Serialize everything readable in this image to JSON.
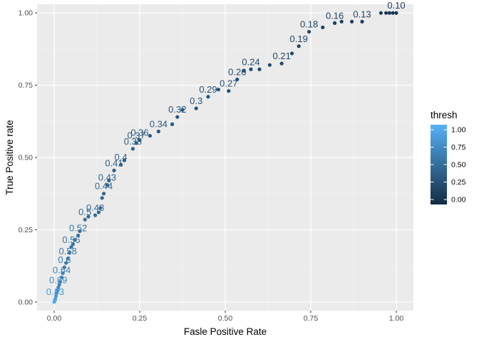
{
  "chart_data": {
    "type": "scatter",
    "title": "",
    "xlabel": "Fasle Positive Rate",
    "ylabel": "True Positive rate",
    "xlim": [
      -0.05,
      1.05
    ],
    "ylim": [
      -0.03,
      1.03
    ],
    "x_ticks": [
      {
        "value": 0.0,
        "label": "0.00"
      },
      {
        "value": 0.25,
        "label": "0.25"
      },
      {
        "value": 0.5,
        "label": "0.50"
      },
      {
        "value": 0.75,
        "label": "0.75"
      },
      {
        "value": 1.0,
        "label": "1.00"
      }
    ],
    "y_ticks": [
      {
        "value": 0.0,
        "label": "0.00"
      },
      {
        "value": 0.25,
        "label": "0.25"
      },
      {
        "value": 0.5,
        "label": "0.50"
      },
      {
        "value": 0.75,
        "label": "0.75"
      },
      {
        "value": 1.0,
        "label": "1.00"
      }
    ],
    "grid": true,
    "legend": {
      "title": "thresh",
      "position": "right",
      "low_color": "#132B43",
      "high_color": "#56B1F7",
      "ticks": [
        {
          "value": 0.0,
          "label": "0.00"
        },
        {
          "value": 0.25,
          "label": "0.25"
        },
        {
          "value": 0.5,
          "label": "0.50"
        },
        {
          "value": 0.75,
          "label": "0.75"
        },
        {
          "value": 1.0,
          "label": "1.00"
        }
      ]
    },
    "points": [
      {
        "x": 1.0,
        "y": 1.0,
        "thresh": 0.1,
        "label": "0.10"
      },
      {
        "x": 0.99,
        "y": 1.0,
        "thresh": 0.1
      },
      {
        "x": 0.98,
        "y": 1.0,
        "thresh": 0.11
      },
      {
        "x": 0.97,
        "y": 1.0,
        "thresh": 0.11
      },
      {
        "x": 0.955,
        "y": 1.0,
        "thresh": 0.12
      },
      {
        "x": 0.9,
        "y": 0.97,
        "thresh": 0.13,
        "label": "0.13"
      },
      {
        "x": 0.87,
        "y": 0.97,
        "thresh": 0.14
      },
      {
        "x": 0.84,
        "y": 0.97,
        "thresh": 0.15
      },
      {
        "x": 0.82,
        "y": 0.965,
        "thresh": 0.16,
        "label": "0.16"
      },
      {
        "x": 0.785,
        "y": 0.95,
        "thresh": 0.17
      },
      {
        "x": 0.745,
        "y": 0.935,
        "thresh": 0.18,
        "label": "0.18"
      },
      {
        "x": 0.715,
        "y": 0.885,
        "thresh": 0.19,
        "label": "0.19"
      },
      {
        "x": 0.695,
        "y": 0.86,
        "thresh": 0.2
      },
      {
        "x": 0.665,
        "y": 0.825,
        "thresh": 0.21,
        "label": "0.21"
      },
      {
        "x": 0.63,
        "y": 0.82,
        "thresh": 0.22
      },
      {
        "x": 0.6,
        "y": 0.805,
        "thresh": 0.23
      },
      {
        "x": 0.575,
        "y": 0.805,
        "thresh": 0.24,
        "label": "0.24"
      },
      {
        "x": 0.555,
        "y": 0.8,
        "thresh": 0.25
      },
      {
        "x": 0.535,
        "y": 0.77,
        "thresh": 0.26,
        "label": "0.26"
      },
      {
        "x": 0.51,
        "y": 0.73,
        "thresh": 0.27,
        "label": "0.27"
      },
      {
        "x": 0.48,
        "y": 0.735,
        "thresh": 0.28
      },
      {
        "x": 0.45,
        "y": 0.71,
        "thresh": 0.29,
        "label": "0.29"
      },
      {
        "x": 0.415,
        "y": 0.67,
        "thresh": 0.3,
        "label": "0.3"
      },
      {
        "x": 0.375,
        "y": 0.665,
        "thresh": 0.31
      },
      {
        "x": 0.36,
        "y": 0.64,
        "thresh": 0.32,
        "label": "0.32"
      },
      {
        "x": 0.345,
        "y": 0.615,
        "thresh": 0.33
      },
      {
        "x": 0.305,
        "y": 0.59,
        "thresh": 0.34,
        "label": "0.34"
      },
      {
        "x": 0.28,
        "y": 0.575,
        "thresh": 0.35
      },
      {
        "x": 0.25,
        "y": 0.56,
        "thresh": 0.36,
        "label": "0.36"
      },
      {
        "x": 0.24,
        "y": 0.55,
        "thresh": 0.37,
        "label": "0.37"
      },
      {
        "x": 0.23,
        "y": 0.53,
        "thresh": 0.38,
        "label": "0.38"
      },
      {
        "x": 0.205,
        "y": 0.49,
        "thresh": 0.39
      },
      {
        "x": 0.195,
        "y": 0.475,
        "thresh": 0.4,
        "label": "0.4"
      },
      {
        "x": 0.175,
        "y": 0.455,
        "thresh": 0.41,
        "label": "0.41"
      },
      {
        "x": 0.16,
        "y": 0.42,
        "thresh": 0.42
      },
      {
        "x": 0.155,
        "y": 0.405,
        "thresh": 0.43,
        "label": "0.43"
      },
      {
        "x": 0.145,
        "y": 0.375,
        "thresh": 0.44,
        "label": "0.44"
      },
      {
        "x": 0.14,
        "y": 0.36,
        "thresh": 0.45
      },
      {
        "x": 0.135,
        "y": 0.325,
        "thresh": 0.46
      },
      {
        "x": 0.13,
        "y": 0.31,
        "thresh": 0.47
      },
      {
        "x": 0.12,
        "y": 0.3,
        "thresh": 0.48,
        "label": "0.48"
      },
      {
        "x": 0.1,
        "y": 0.295,
        "thresh": 0.49
      },
      {
        "x": 0.09,
        "y": 0.285,
        "thresh": 0.5,
        "label": "0.5"
      },
      {
        "x": 0.075,
        "y": 0.245,
        "thresh": 0.51
      },
      {
        "x": 0.07,
        "y": 0.23,
        "thresh": 0.52,
        "label": "0.52"
      },
      {
        "x": 0.06,
        "y": 0.215,
        "thresh": 0.53
      },
      {
        "x": 0.055,
        "y": 0.2,
        "thresh": 0.55
      },
      {
        "x": 0.05,
        "y": 0.19,
        "thresh": 0.56,
        "label": "0.56"
      },
      {
        "x": 0.045,
        "y": 0.17,
        "thresh": 0.57
      },
      {
        "x": 0.04,
        "y": 0.15,
        "thresh": 0.58,
        "label": "0.58"
      },
      {
        "x": 0.035,
        "y": 0.135,
        "thresh": 0.59
      },
      {
        "x": 0.03,
        "y": 0.12,
        "thresh": 0.6,
        "label": "0.6"
      },
      {
        "x": 0.025,
        "y": 0.1,
        "thresh": 0.62
      },
      {
        "x": 0.022,
        "y": 0.085,
        "thresh": 0.64,
        "label": "0.64"
      },
      {
        "x": 0.018,
        "y": 0.07,
        "thresh": 0.66
      },
      {
        "x": 0.015,
        "y": 0.06,
        "thresh": 0.68
      },
      {
        "x": 0.012,
        "y": 0.05,
        "thresh": 0.69,
        "label": "0.69"
      },
      {
        "x": 0.01,
        "y": 0.04,
        "thresh": 0.72
      },
      {
        "x": 0.007,
        "y": 0.03,
        "thresh": 0.76
      },
      {
        "x": 0.005,
        "y": 0.02,
        "thresh": 0.8
      },
      {
        "x": 0.003,
        "y": 0.01,
        "thresh": 0.83,
        "label": "0.83"
      },
      {
        "x": 0.002,
        "y": 0.005,
        "thresh": 0.9
      },
      {
        "x": 0.0,
        "y": 0.0,
        "thresh": 0.95
      }
    ]
  }
}
